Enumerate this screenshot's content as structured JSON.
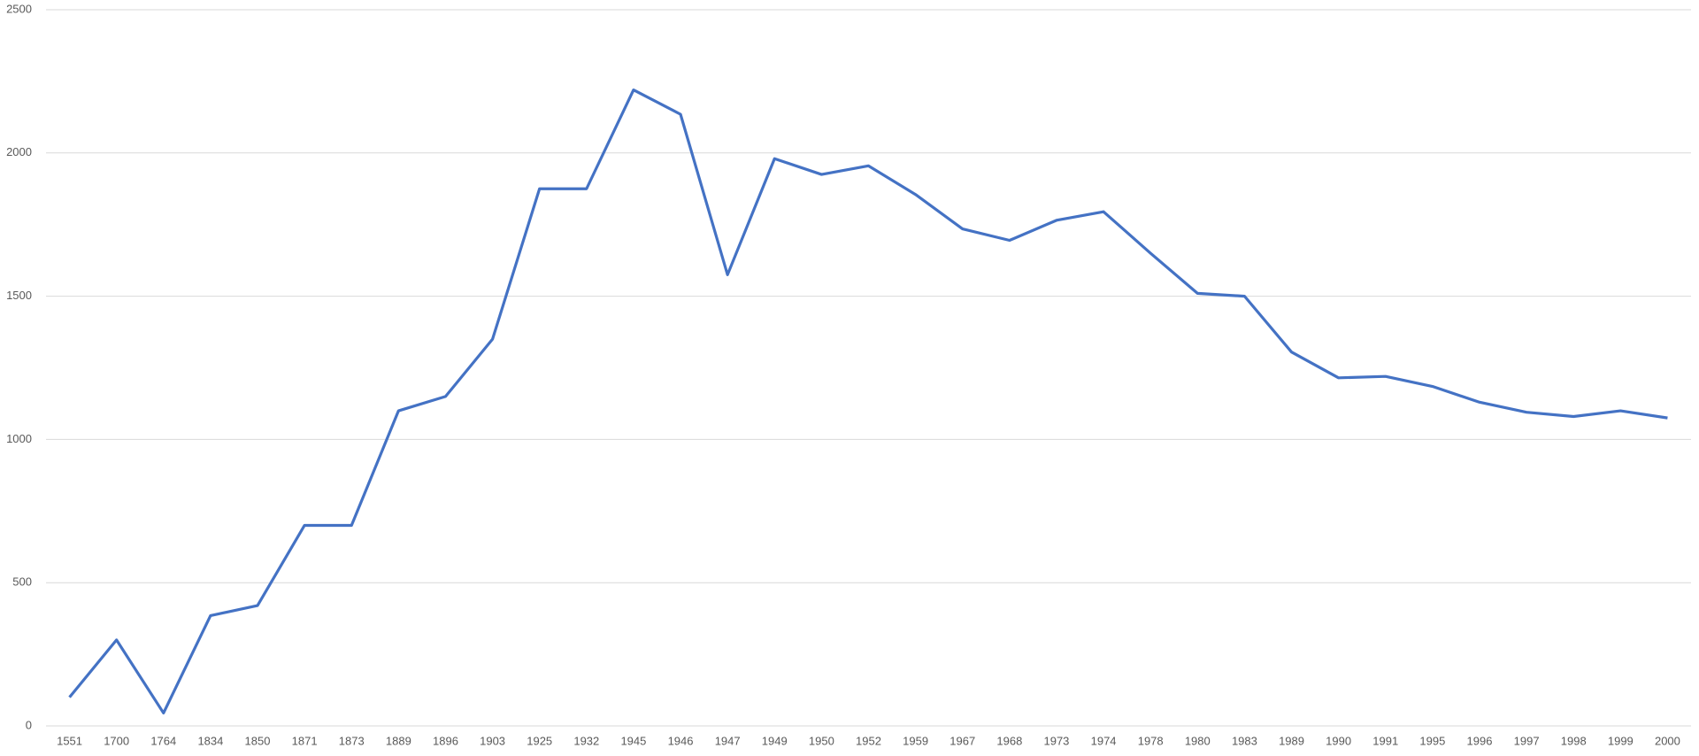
{
  "chart_data": {
    "type": "line",
    "categories": [
      "1551",
      "1700",
      "1764",
      "1834",
      "1850",
      "1871",
      "1873",
      "1889",
      "1896",
      "1903",
      "1925",
      "1932",
      "1945",
      "1946",
      "1947",
      "1949",
      "1950",
      "1952",
      "1959",
      "1967",
      "1968",
      "1973",
      "1974",
      "1978",
      "1980",
      "1983",
      "1989",
      "1990",
      "1991",
      "1995",
      "1996",
      "1997",
      "1998",
      "1999",
      "2000"
    ],
    "series": [
      {
        "color": "#4472c4",
        "values": [
          100,
          300,
          45,
          385,
          420,
          700,
          700,
          1100,
          1150,
          1350,
          1875,
          1875,
          2220,
          2135,
          1575,
          1980,
          1925,
          1955,
          1855,
          1735,
          1695,
          1765,
          1795,
          1650,
          1510,
          1500,
          1305,
          1215,
          1220,
          1185,
          1130,
          1095,
          1080,
          1100,
          1075
        ]
      }
    ],
    "ylim": [
      0,
      2500
    ],
    "yticks": [
      0,
      500,
      1000,
      1500,
      2000,
      2500
    ],
    "grid": true
  }
}
